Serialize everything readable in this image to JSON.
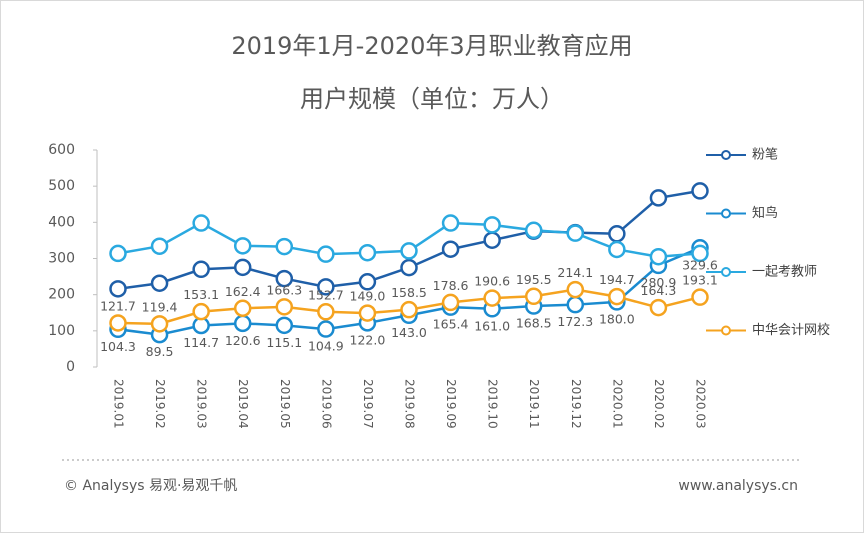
{
  "chart_data": {
    "type": "line",
    "title": "2019年1月-2020年3月职业教育应用",
    "subtitle": "用户规模（单位：万人）",
    "categories": [
      "2019.01",
      "2019.02",
      "2019.03",
      "2019.04",
      "2019.05",
      "2019.06",
      "2019.07",
      "2019.08",
      "2019.09",
      "2019.10",
      "2019.11",
      "2019.12",
      "2020.01",
      "2020.02",
      "2020.03"
    ],
    "series": [
      {
        "name": "粉笔",
        "color": "#1f5fa8",
        "values": [
          216.1,
          231.6,
          270.2,
          275.5,
          244.5,
          221.7,
          235.6,
          274.8,
          325.6,
          350.6,
          375.6,
          371.7,
          368.3,
          467.6,
          486.9
        ]
      },
      {
        "name": "知鸟",
        "color": "#1a8bd0",
        "values": [
          104.3,
          89.5,
          114.7,
          120.6,
          115.1,
          104.9,
          122.0,
          143.0,
          165.4,
          161.0,
          168.5,
          172.3,
          180.0,
          280.9,
          329.6
        ],
        "value_labels": [
          "104.3",
          "89.5",
          "114.7",
          "120.6",
          "115.1",
          "104.9",
          "122.0",
          "143.0",
          "165.4",
          "161.0",
          "168.5",
          "172.3",
          "180.0",
          "280.9",
          "329.6"
        ]
      },
      {
        "name": "一起考教师",
        "color": "#2aa9e0",
        "values": [
          314,
          334,
          398,
          335,
          333,
          312,
          316,
          321,
          398,
          393,
          378,
          370,
          325,
          305,
          314
        ]
      },
      {
        "name": "中华会计网校",
        "color": "#f5a31f",
        "values": [
          121.7,
          119.4,
          153.1,
          162.4,
          166.3,
          152.7,
          149.0,
          158.5,
          178.6,
          190.6,
          195.5,
          214.1,
          194.7,
          164.3,
          193.1
        ],
        "value_labels": [
          "121.7",
          "119.4",
          "153.1",
          "162.4",
          "166.3",
          "152.7",
          "149.0",
          "158.5",
          "178.6",
          "190.6",
          "195.5",
          "214.1",
          "194.7",
          "164.3",
          "193.1"
        ]
      }
    ],
    "ylim": [
      0,
      600
    ],
    "yticks": [
      0,
      100,
      200,
      300,
      400,
      500,
      600
    ],
    "grid": false,
    "legend": "right"
  },
  "footer": {
    "left": "© Analysys 易观·易观千帆",
    "right": "www.analysys.cn"
  }
}
